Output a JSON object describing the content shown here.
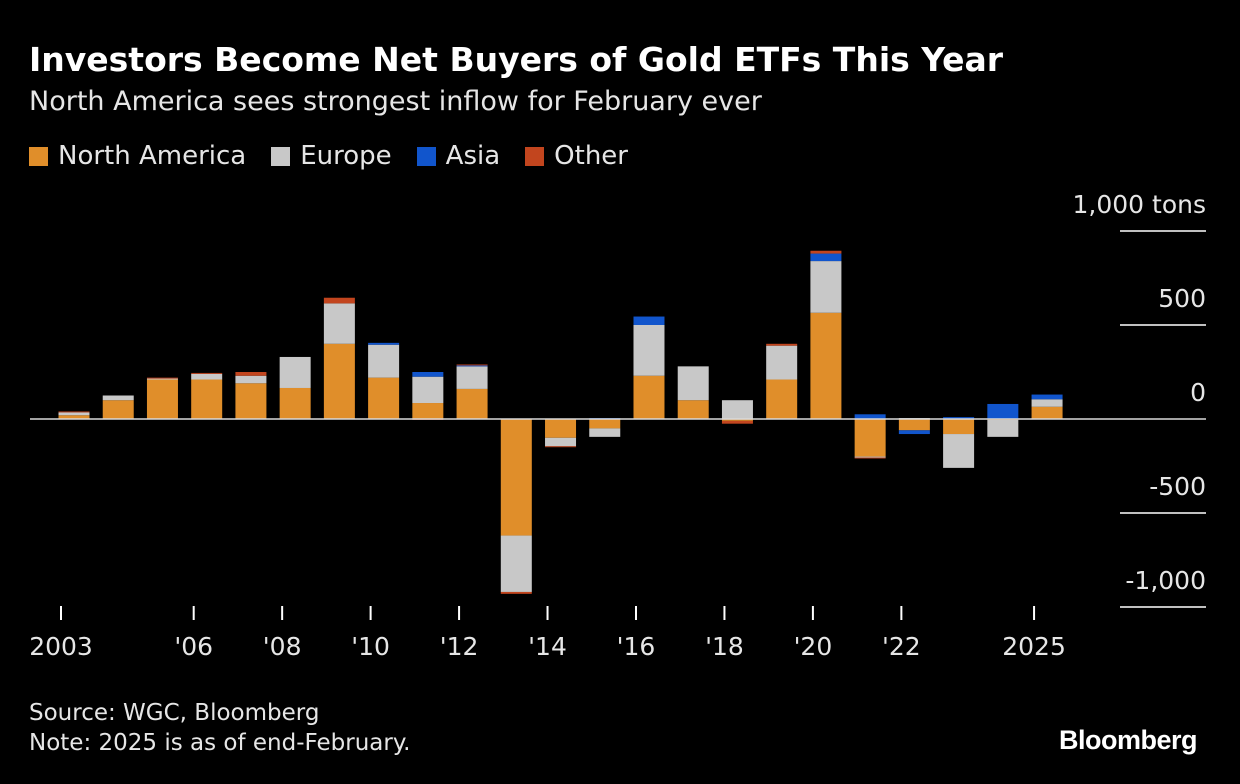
{
  "title": "Investors Become Net Buyers of Gold ETFs This Year",
  "subtitle": "North America sees strongest inflow for February ever",
  "source": "Source: WGC, Bloomberg",
  "note": "Note: 2025 is as of end-February.",
  "logo": "Bloomberg",
  "colors": {
    "north_america": "#E08E2A",
    "europe": "#C8C8C8",
    "asia": "#1155CC",
    "other": "#C2451E",
    "background": "#000000",
    "zero_line": "#D9D9D9"
  },
  "chart_data": {
    "type": "bar",
    "stacked": true,
    "title": "Investors Become Net Buyers of Gold ETFs This Year",
    "subtitle": "North America sees strongest inflow for February ever",
    "unit_label": "1,000 tons",
    "ylim": [
      -1000,
      1000
    ],
    "yticks": [
      {
        "value": 1000,
        "label": "1,000 tons"
      },
      {
        "value": 500,
        "label": "500"
      },
      {
        "value": 0,
        "label": "0"
      },
      {
        "value": -500,
        "label": "-500"
      },
      {
        "value": -1000,
        "label": "-1,000"
      }
    ],
    "categories": [
      "2003",
      "2004",
      "2005",
      "2006",
      "2007",
      "2008",
      "2009",
      "2010",
      "2011",
      "2012",
      "2013",
      "2014",
      "2015",
      "2016",
      "2017",
      "2018",
      "2019",
      "2020",
      "2021",
      "2022",
      "2023",
      "2024",
      "2025"
    ],
    "xtick_labels": [
      {
        "category": "2003",
        "label": "2003"
      },
      {
        "category": "2006",
        "label": "'06"
      },
      {
        "category": "2008",
        "label": "'08"
      },
      {
        "category": "2010",
        "label": "'10"
      },
      {
        "category": "2012",
        "label": "'12"
      },
      {
        "category": "2014",
        "label": "'14"
      },
      {
        "category": "2016",
        "label": "'16"
      },
      {
        "category": "2018",
        "label": "'18"
      },
      {
        "category": "2020",
        "label": "'20"
      },
      {
        "category": "2022",
        "label": "'22"
      },
      {
        "category": "2025",
        "label": "2025"
      }
    ],
    "legend": [
      {
        "key": "north_america",
        "label": "North America"
      },
      {
        "key": "europe",
        "label": "Europe"
      },
      {
        "key": "asia",
        "label": "Asia"
      },
      {
        "key": "other",
        "label": "Other"
      }
    ],
    "series": [
      {
        "key": "north_america",
        "name": "North America",
        "values": [
          20,
          100,
          210,
          210,
          190,
          165,
          400,
          220,
          85,
          160,
          -620,
          -100,
          -50,
          230,
          100,
          -10,
          210,
          565,
          -200,
          -60,
          -80,
          -5,
          65
        ]
      },
      {
        "key": "europe",
        "name": "Europe",
        "values": [
          15,
          25,
          5,
          30,
          40,
          165,
          215,
          175,
          140,
          120,
          -300,
          -45,
          -45,
          270,
          180,
          100,
          180,
          275,
          -5,
          5,
          -180,
          -90,
          40
        ]
      },
      {
        "key": "asia",
        "name": "Asia",
        "values": [
          0,
          0,
          0,
          0,
          0,
          0,
          0,
          10,
          25,
          5,
          0,
          0,
          5,
          45,
          0,
          0,
          0,
          40,
          25,
          -20,
          10,
          80,
          25
        ]
      },
      {
        "key": "other",
        "name": "Other",
        "values": [
          5,
          0,
          5,
          5,
          20,
          0,
          30,
          0,
          -5,
          5,
          -10,
          -5,
          0,
          0,
          0,
          -15,
          10,
          15,
          -5,
          0,
          0,
          0,
          0
        ]
      }
    ]
  }
}
